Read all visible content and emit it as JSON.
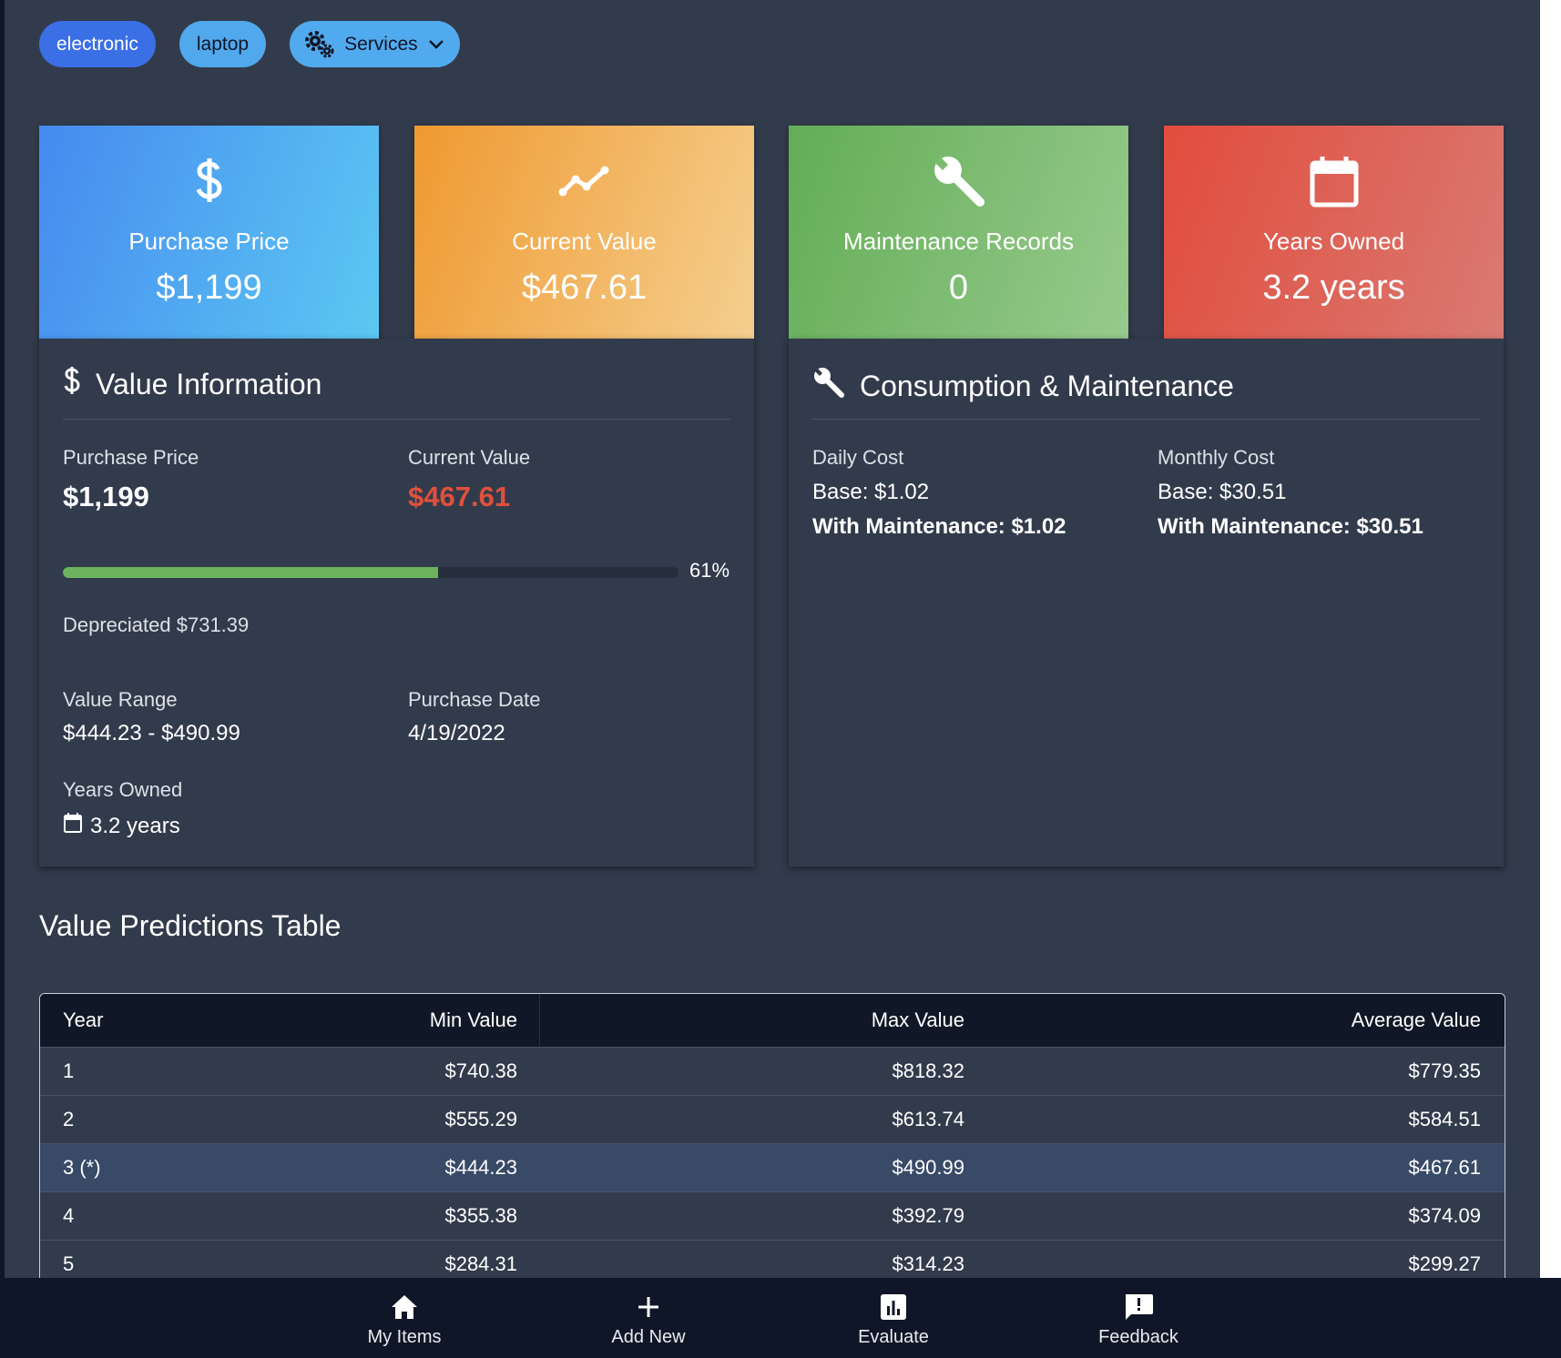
{
  "tags": {
    "electronic": "electronic",
    "laptop": "laptop",
    "services": "Services"
  },
  "stat_cards": {
    "purchase": {
      "label": "Purchase Price",
      "value": "$1,199"
    },
    "current": {
      "label": "Current Value",
      "value": "$467.61"
    },
    "maintenance": {
      "label": "Maintenance Records",
      "value": "0"
    },
    "years": {
      "label": "Years Owned",
      "value": "3.2 years"
    }
  },
  "value_info": {
    "title": "Value Information",
    "purchase_price_label": "Purchase Price",
    "purchase_price": "$1,199",
    "current_value_label": "Current Value",
    "current_value": "$467.61",
    "depreciation_fraction": 0.61,
    "depreciation_percent_text": "61%",
    "depreciated_text": "Depreciated $731.39",
    "value_range_label": "Value Range",
    "value_range": "$444.23 - $490.99",
    "purchase_date_label": "Purchase Date",
    "purchase_date": "4/19/2022",
    "years_owned_label": "Years Owned",
    "years_owned": "3.2 years"
  },
  "consumption": {
    "title": "Consumption & Maintenance",
    "daily_label": "Daily Cost",
    "daily_base": "Base: $1.02",
    "daily_with": "With Maintenance: $1.02",
    "monthly_label": "Monthly Cost",
    "monthly_base": "Base: $30.51",
    "monthly_with": "With Maintenance: $30.51"
  },
  "predictions": {
    "title": "Value Predictions Table",
    "headers": [
      "Year",
      "Min Value",
      "Max Value",
      "Average Value"
    ],
    "rows": [
      [
        "1",
        "$740.38",
        "$818.32",
        "$779.35"
      ],
      [
        "2",
        "$555.29",
        "$613.74",
        "$584.51"
      ],
      [
        "3 (*)",
        "$444.23",
        "$490.99",
        "$467.61"
      ],
      [
        "4",
        "$355.38",
        "$392.79",
        "$374.09"
      ],
      [
        "5",
        "$284.31",
        "$314.23",
        "$299.27"
      ]
    ]
  },
  "nav": {
    "my_items": "My Items",
    "add_new": "Add New",
    "evaluate": "Evaluate",
    "feedback": "Feedback"
  },
  "colors": {
    "background": "#323b4c",
    "accent_red": "#e0503c",
    "progress": "#6db35e"
  }
}
